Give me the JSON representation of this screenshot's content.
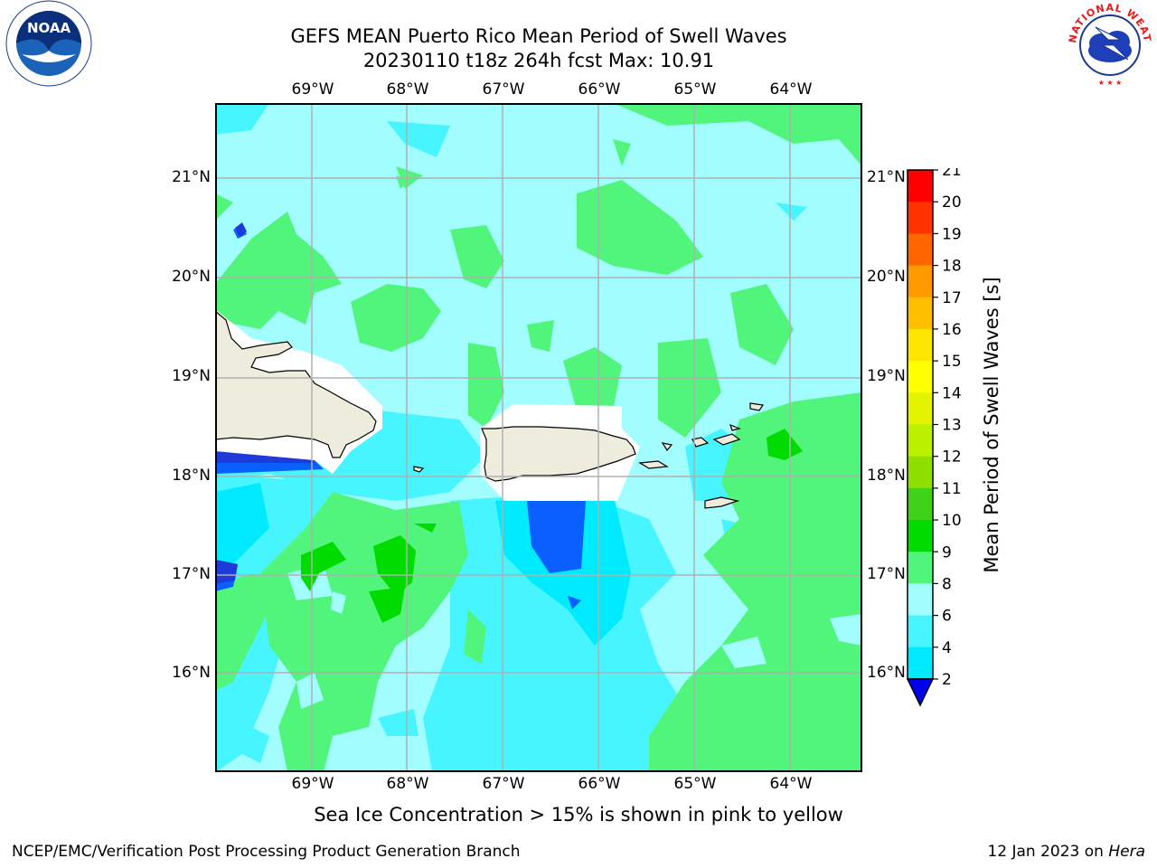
{
  "title": {
    "line1": "GEFS MEAN Puerto Rico Mean Period of Swell Waves",
    "line2": "20230110 t18z 264h fcst    Max: 10.91"
  },
  "map": {
    "lon_labels": [
      "69°W",
      "68°W",
      "67°W",
      "66°W",
      "65°W",
      "64°W"
    ],
    "lat_labels": [
      "21°N",
      "20°N",
      "19°N",
      "18°N",
      "17°N",
      "16°N"
    ],
    "land_color": "#eeecdc",
    "grid_color": "#b0b0b0"
  },
  "colorbar": {
    "label": "Mean Period of Swell Waves [s]",
    "ticks": [
      "2",
      "4",
      "6",
      "8",
      "9",
      "10",
      "11",
      "12",
      "13",
      "14",
      "15",
      "16",
      "17",
      "18",
      "19",
      "20",
      "21"
    ],
    "colors": [
      "#0a60ff",
      "#00eaff",
      "#46f5ff",
      "#a2fdff",
      "#52f57c",
      "#00dc00",
      "#3fd219",
      "#8fe000",
      "#bbf000",
      "#e4f400",
      "#ffff00",
      "#ffe600",
      "#ffbf00",
      "#ff9900",
      "#ff6600",
      "#ff3300",
      "#ff0000"
    ],
    "under_color": "#0000ee"
  },
  "note": "Sea Ice Concentration > 15% is shown in pink to yellow",
  "footer": {
    "left": "NCEP/EMC/Verification Post Processing Product Generation Branch",
    "date": "12 Jan 2023 on ",
    "machine": "Hera"
  },
  "logos": {
    "noaa": "NOAA",
    "nws": "NATIONAL WEATHER SERVICE"
  }
}
